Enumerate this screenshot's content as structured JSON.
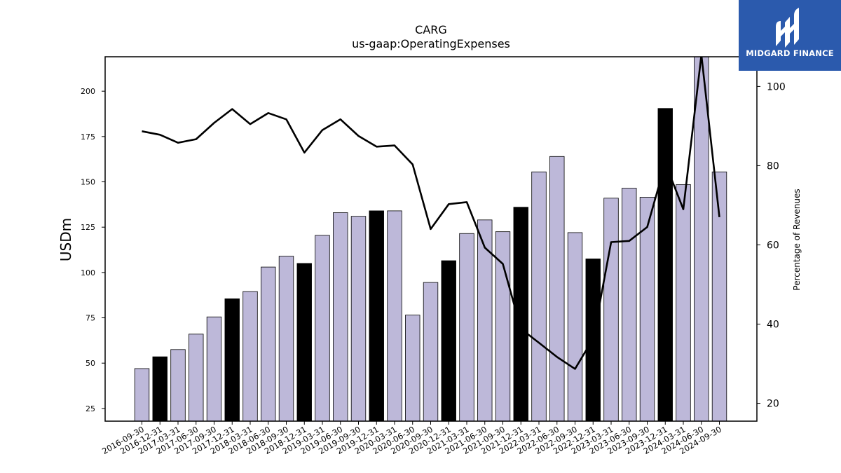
{
  "chart_data": {
    "type": "bar",
    "title": "CARG",
    "subtitle": "us-gaap:OperatingExpenses",
    "ylabel": "USDm",
    "y2label": "Percentage of Revenues",
    "ylim": [
      18,
      219
    ],
    "y2lim": [
      15.5,
      107.5
    ],
    "yticks": [
      25,
      50,
      75,
      100,
      125,
      150,
      175,
      200
    ],
    "y2ticks": [
      20,
      40,
      60,
      80,
      100
    ],
    "categories": [
      "2016-09-30",
      "2016-12-31",
      "2017-03-31",
      "2017-06-30",
      "2017-09-30",
      "2017-12-31",
      "2018-03-31",
      "2018-06-30",
      "2018-09-30",
      "2018-12-31",
      "2019-03-31",
      "2019-06-30",
      "2019-09-30",
      "2019-12-31",
      "2020-03-31",
      "2020-06-30",
      "2020-09-30",
      "2020-12-31",
      "2021-03-31",
      "2021-06-30",
      "2021-09-30",
      "2021-12-31",
      "2022-03-31",
      "2022-06-30",
      "2022-09-30",
      "2022-12-31",
      "2023-03-31",
      "2023-06-30",
      "2023-09-30",
      "2023-12-31",
      "2024-03-31",
      "2024-06-30",
      "2024-09-30"
    ],
    "series": [
      {
        "type": "bar",
        "values": [
          47,
          53.5,
          57.5,
          66,
          75.5,
          85.5,
          89.5,
          103,
          109,
          105,
          120.5,
          133,
          131,
          134,
          134,
          76.5,
          94.5,
          106.5,
          121.5,
          129,
          122.5,
          136,
          155.5,
          164,
          122,
          107.5,
          141,
          146.5,
          141.5,
          190.5,
          148.5,
          219,
          155.5
        ]
      },
      {
        "type": "line",
        "axis": "right",
        "values": [
          88.7,
          87.8,
          85.8,
          86.7,
          90.8,
          94.3,
          90.5,
          93.3,
          91.7,
          83.3,
          89.0,
          91.7,
          87.5,
          84.8,
          85.1,
          80.3,
          64.0,
          70.3,
          70.8,
          59.3,
          55.2,
          38.8,
          35.3,
          31.7,
          28.7,
          36.3,
          60.7,
          61.0,
          64.5,
          80.6,
          69.0,
          108.0,
          67.0
        ]
      }
    ],
    "highlight_indices": [
      1,
      5,
      9,
      13,
      17,
      21,
      25,
      29
    ],
    "bar_color": "#bdb8d9",
    "highlight_color": "#000000",
    "line_color": "#000000",
    "grid": false,
    "legend": "none"
  },
  "logo": {
    "text": "MIDGARD FINANCE",
    "background": "#2b5aad"
  }
}
